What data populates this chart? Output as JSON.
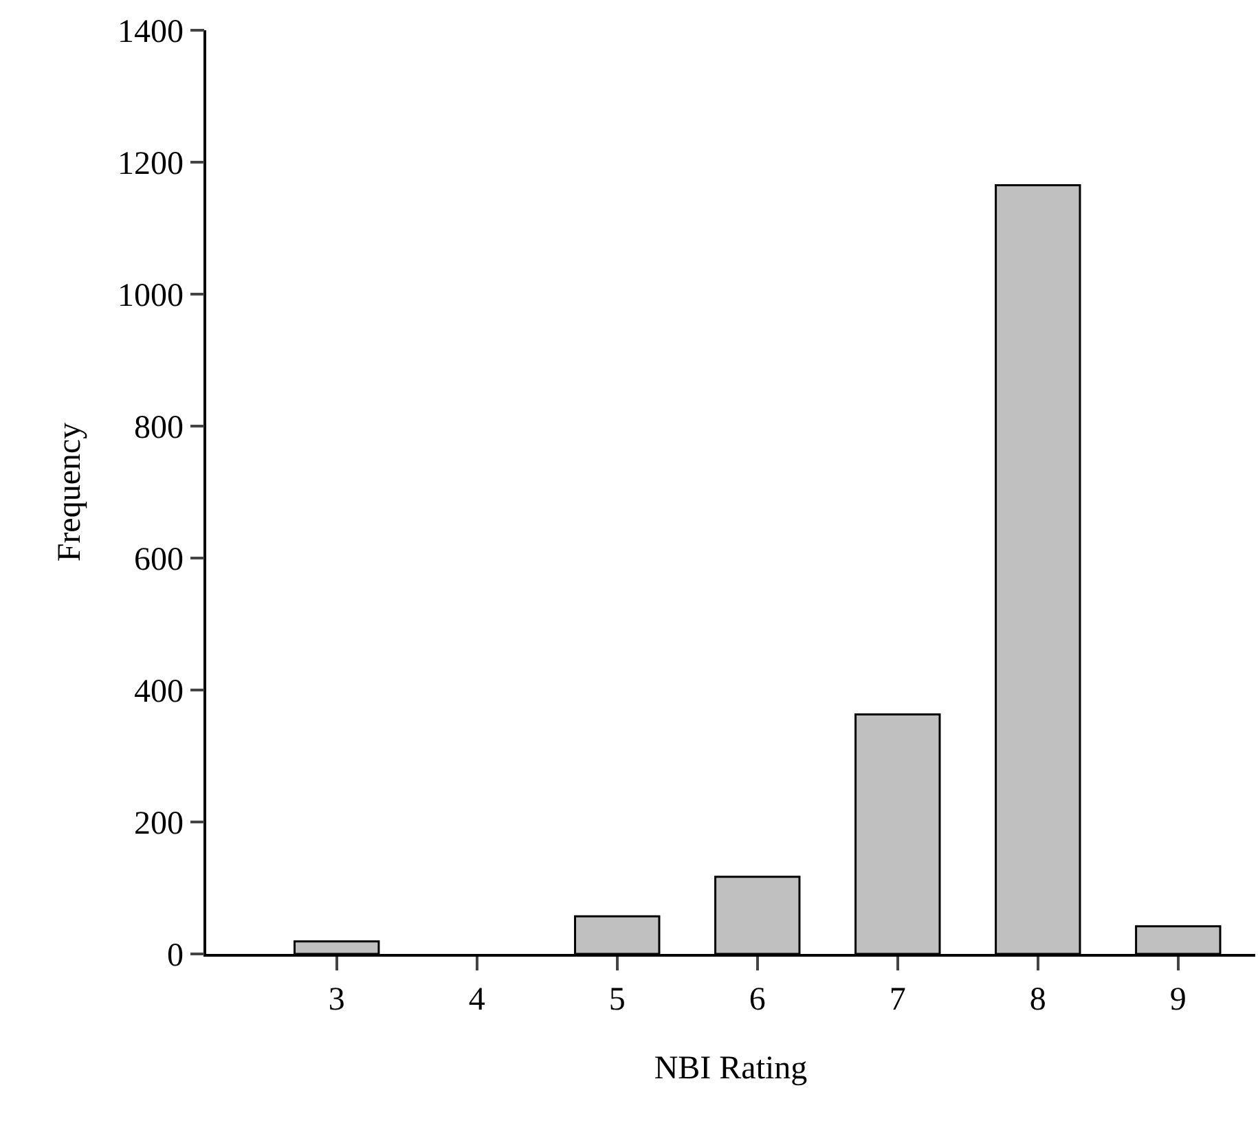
{
  "chart_data": {
    "type": "bar",
    "xlabel": "NBI Rating",
    "ylabel": "Frequency",
    "categories": [
      "3",
      "4",
      "5",
      "6",
      "7",
      "8",
      "9"
    ],
    "values": [
      19,
      0,
      57,
      117,
      363,
      1165,
      42
    ],
    "color": "#c0c0c0",
    "ylim": [
      0,
      1400
    ],
    "yticks": [
      0,
      200,
      400,
      600,
      800,
      1000,
      1200,
      1400
    ],
    "grid": false
  }
}
